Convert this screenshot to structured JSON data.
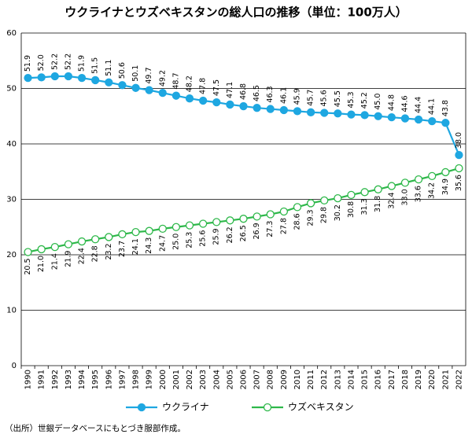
{
  "chart_data": {
    "type": "line",
    "title": "ウクライナとウズベキスタンの総人口の推移（単位：100万人）",
    "categories": [
      "1990",
      "1991",
      "1992",
      "1993",
      "1994",
      "1995",
      "1996",
      "1997",
      "1998",
      "1999",
      "2000",
      "2001",
      "2002",
      "2003",
      "2004",
      "2005",
      "2006",
      "2007",
      "2008",
      "2009",
      "2010",
      "2011",
      "2012",
      "2013",
      "2014",
      "2015",
      "2016",
      "2017",
      "2018",
      "2019",
      "2020",
      "2021",
      "2022"
    ],
    "series": [
      {
        "name": "ウクライナ",
        "color": "#1ea7e1",
        "marker_fill": "#1ea7e1",
        "label_side": "above",
        "values": [
          51.9,
          52.0,
          52.2,
          52.2,
          51.9,
          51.5,
          51.1,
          50.6,
          50.1,
          49.7,
          49.2,
          48.7,
          48.2,
          47.8,
          47.5,
          47.1,
          46.8,
          46.5,
          46.3,
          46.1,
          45.9,
          45.7,
          45.6,
          45.5,
          45.3,
          45.2,
          45.0,
          44.8,
          44.6,
          44.4,
          44.1,
          43.8,
          38.0
        ],
        "value_labels": [
          "51.9",
          "52.0",
          "52.2",
          "52.2",
          "51.9",
          "51.5",
          "51.1",
          "50.6",
          "50.1",
          "49.7",
          "49.2",
          "48.7",
          "48.2",
          "47.8",
          "47.5",
          "47.1",
          "46.8",
          "46.5",
          "46.3",
          "46.1",
          "45.9",
          "45.7",
          "45.6",
          "45.5",
          "45.3",
          "45.2",
          "45.0",
          "44.8",
          "44.6",
          "44.4",
          "44.1",
          "43.8",
          "38.0"
        ]
      },
      {
        "name": "ウズベキスタン",
        "color": "#2eb84a",
        "marker_fill": "#ffffff",
        "label_side": "below",
        "values": [
          20.5,
          21.0,
          21.4,
          21.9,
          22.4,
          22.8,
          23.2,
          23.7,
          24.1,
          24.3,
          24.7,
          25.0,
          25.3,
          25.6,
          25.9,
          26.2,
          26.5,
          26.9,
          27.3,
          27.8,
          28.6,
          29.3,
          29.8,
          30.2,
          30.8,
          31.3,
          31.8,
          32.4,
          33.0,
          33.6,
          34.2,
          34.9,
          35.6
        ],
        "value_labels": [
          "20.5",
          "21.0",
          "21.4",
          "21.9",
          "22.4",
          "22.8",
          "23.2",
          "23.7",
          "24.1",
          "24.3",
          "24.7",
          "25.0",
          "25.3",
          "25.6",
          "25.9",
          "26.2",
          "26.5",
          "26.9",
          "27.3",
          "27.8",
          "28.6",
          "29.3",
          "29.8",
          "30.2",
          "30.8",
          "31.3",
          "31.8",
          "32.4",
          "33.0",
          "33.6",
          "34.2",
          "34.9",
          "35.6"
        ]
      }
    ],
    "ylim": [
      0,
      60
    ],
    "yticks": [
      0,
      10,
      20,
      30,
      40,
      50,
      60
    ],
    "grid": true,
    "legend": "bottom",
    "note": "（出所）世銀データベースにもとづき服部作成。"
  }
}
